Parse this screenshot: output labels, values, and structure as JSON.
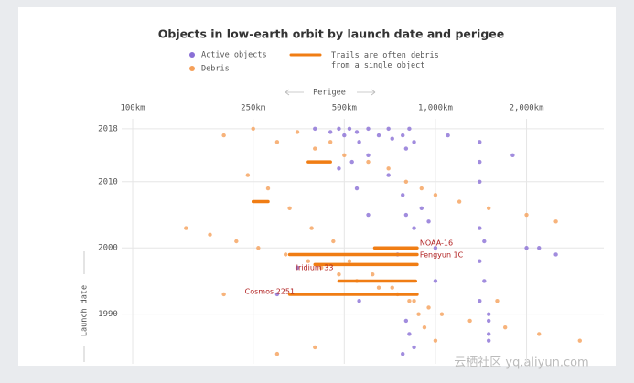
{
  "chart_data": {
    "type": "scatter",
    "title": "Objects in low-earth orbit by launch date and perigee",
    "x_label": "Perigee",
    "y_label": "Launch date",
    "x_log": true,
    "grid": true,
    "xlim": [
      70.6,
      3600
    ],
    "ylim": [
      1982.5,
      2019.5
    ],
    "xticks": [
      {
        "value": 100,
        "label": "100km"
      },
      {
        "value": 250,
        "label": "250km"
      },
      {
        "value": 500,
        "label": "500km"
      },
      {
        "value": 1000,
        "label": "1,000km"
      },
      {
        "value": 2000,
        "label": "2,000km"
      }
    ],
    "yticks": [
      1990,
      2000,
      2010,
      2018
    ],
    "series": [
      {
        "name": "Active objects",
        "color": "#8a6fd6",
        "x": [
          400,
          450,
          480,
          500,
          520,
          550,
          560,
          600,
          650,
          700,
          720,
          780,
          800,
          820,
          850,
          480,
          530,
          550,
          600,
          700,
          780,
          800,
          850,
          900,
          950,
          1000,
          1000,
          1100,
          1400,
          1400,
          1400,
          1400,
          1400,
          1400,
          1500,
          1500,
          1500,
          1500,
          1450,
          1450,
          2000,
          2200,
          2500,
          1800,
          750,
          600,
          350,
          300,
          800,
          820,
          850,
          780,
          560
        ],
        "values": [
          2018,
          2017.5,
          2018,
          2017,
          2018,
          2017.5,
          2016,
          2018,
          2017,
          2018,
          2016.5,
          2017,
          2015,
          2018,
          2016,
          2012,
          2013,
          2009,
          2014,
          2011,
          2008,
          2005,
          2003,
          2006,
          2004,
          2000,
          1995,
          2017,
          2016,
          2013,
          2010,
          2003,
          1998,
          1992,
          1990,
          1986,
          1987,
          1989,
          2001,
          1995,
          2000,
          2000,
          1999,
          2014,
          1999,
          2005,
          1997,
          1993,
          1989,
          1987,
          1985,
          1984,
          1992
        ]
      },
      {
        "name": "Debris",
        "color": "#f5a05a",
        "x": [
          200,
          250,
          300,
          350,
          400,
          450,
          500,
          600,
          700,
          800,
          900,
          1000,
          1200,
          1500,
          2000,
          2500,
          150,
          180,
          220,
          260,
          320,
          380,
          420,
          480,
          550,
          650,
          750,
          850,
          950,
          1050,
          1300,
          1700,
          2200,
          3000,
          240,
          280,
          330,
          390,
          460,
          520,
          620,
          720,
          820,
          880,
          920,
          1000,
          1600,
          400,
          300,
          200
        ],
        "values": [
          2017,
          2018,
          2016,
          2017.5,
          2015,
          2016,
          2014,
          2013,
          2012,
          2010,
          2009,
          2008,
          2007,
          2006,
          2005,
          2004,
          2003,
          2002,
          2001,
          2000,
          1999,
          1998,
          1997,
          1996,
          1995,
          1994,
          1993,
          1992,
          1991,
          1990,
          1989,
          1988,
          1987,
          1986,
          2011,
          2009,
          2006,
          2003,
          2001,
          1998,
          1996,
          1994,
          1992,
          1990,
          1988,
          1986,
          1992,
          1985,
          1984,
          1993
        ]
      }
    ],
    "trails": {
      "name": "Trails are often debris from a single object",
      "color": "#f07d14",
      "x": [
        630,
        330,
        400,
        330,
        480,
        250,
        380
      ],
      "x_end": [
        870,
        870,
        870,
        870,
        860,
        280,
        450
      ],
      "values": [
        2000,
        1999,
        1997.5,
        1993,
        1995,
        2007,
        2013
      ]
    },
    "annotations": [
      {
        "text": "NOAA-16",
        "x": 870,
        "y": 2000.7,
        "side": "right"
      },
      {
        "text": "Fengyun 1C",
        "x": 870,
        "y": 1998.9,
        "side": "right"
      },
      {
        "text": "Iridium 33",
        "x": 470,
        "y": 1997,
        "side": "left"
      },
      {
        "text": "Cosmos 2251",
        "x": 350,
        "y": 1993.4,
        "side": "left"
      }
    ]
  },
  "watermark": "云栖社区 yq.aliyun.com"
}
